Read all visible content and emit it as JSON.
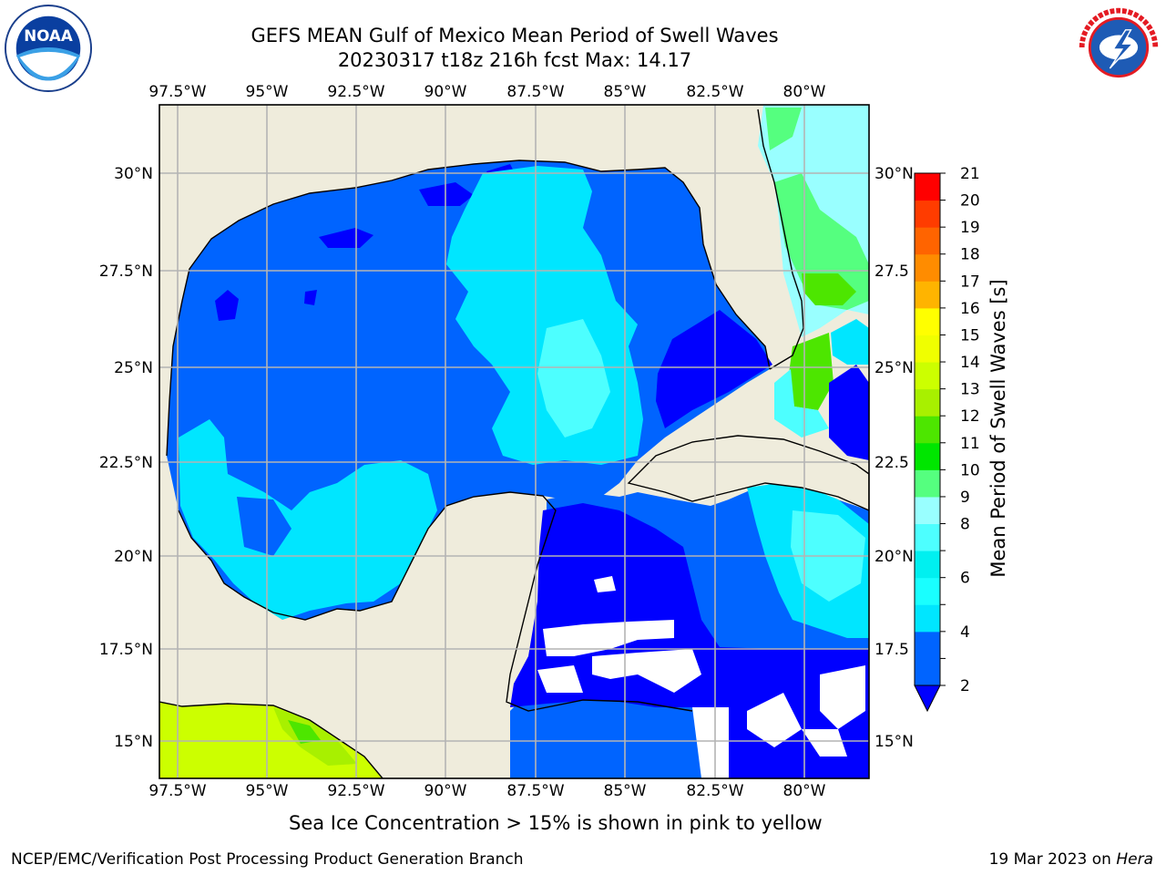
{
  "header": {
    "title_line1": "GEFS MEAN Gulf of Mexico Mean Period of Swell Waves",
    "title_line2": "20230317 t18z 216h fcst   Max: 14.17"
  },
  "logos": {
    "noaa": {
      "text": "NOAA",
      "ring_text": "NATIONAL OCEANIC AND ATMOSPHERIC ADMINISTRATION · U.S. DEPARTMENT OF COMMERCE"
    },
    "nws": {
      "ring_text": "NATIONAL WEATHER SERVICE"
    }
  },
  "map": {
    "lon_ticks": [
      "97.5°W",
      "95°W",
      "92.5°W",
      "90°W",
      "87.5°W",
      "85°W",
      "82.5°W",
      "80°W"
    ],
    "lat_ticks_left": [
      "30°N",
      "27.5°N",
      "25°N",
      "22.5°N",
      "20°N",
      "17.5°N",
      "15°N"
    ],
    "lat_ticks_right": [
      "30°N",
      "27.5",
      "25°N",
      "22.5",
      "20°N",
      "17.5",
      "15°N"
    ],
    "land_color": "#efecdc",
    "grid_color": "#b4b4b4"
  },
  "colorbar": {
    "label": "Mean Period of Swell Waves [s]",
    "ticks": [
      "21",
      "20",
      "19",
      "18",
      "17",
      "16",
      "15",
      "14",
      "13",
      "12",
      "11",
      "10",
      "9",
      "8",
      "7",
      "6",
      "5",
      "4",
      "3",
      "2"
    ],
    "tick_labels_shown": [
      "21",
      "20",
      "19",
      "18",
      "17",
      "16",
      "15",
      "14",
      "13",
      "12",
      "11",
      "10",
      "9",
      "8",
      "6",
      "4",
      "2"
    ],
    "bins": [
      {
        "lo": 2,
        "hi": 4,
        "color": "#0064ff"
      },
      {
        "lo": 4,
        "hi": 5,
        "color": "#00e6ff"
      },
      {
        "lo": 5,
        "hi": 6,
        "color": "#19ffff"
      },
      {
        "lo": 6,
        "hi": 7,
        "color": "#00f0f0"
      },
      {
        "lo": 7,
        "hi": 8,
        "color": "#4dffff"
      },
      {
        "lo": 8,
        "hi": 9,
        "color": "#99ffff"
      },
      {
        "lo": 9,
        "hi": 10,
        "color": "#55ff7f"
      },
      {
        "lo": 10,
        "hi": 11,
        "color": "#00e600"
      },
      {
        "lo": 11,
        "hi": 12,
        "color": "#4de600"
      },
      {
        "lo": 12,
        "hi": 13,
        "color": "#a8f000"
      },
      {
        "lo": 13,
        "hi": 14,
        "color": "#ccff00"
      },
      {
        "lo": 14,
        "hi": 15,
        "color": "#f0ff00"
      },
      {
        "lo": 15,
        "hi": 16,
        "color": "#ffff00"
      },
      {
        "lo": 16,
        "hi": 17,
        "color": "#ffb400"
      },
      {
        "lo": 17,
        "hi": 18,
        "color": "#ff8c00"
      },
      {
        "lo": 18,
        "hi": 19,
        "color": "#ff6400"
      },
      {
        "lo": 19,
        "hi": 20,
        "color": "#ff3c00"
      },
      {
        "lo": 20,
        "hi": 21,
        "color": "#ff0000"
      }
    ],
    "under_color": "#0000ff"
  },
  "footer": {
    "caption": "Sea Ice Concentration > 15% is shown in pink to yellow",
    "left": "NCEP/EMC/Verification Post Processing Product Generation Branch",
    "right_prefix": "19 Mar 2023 on ",
    "right_machine": "Hera"
  }
}
